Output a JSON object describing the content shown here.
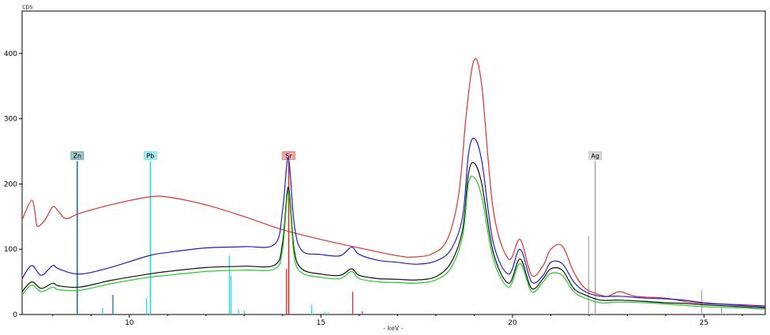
{
  "chart_data": {
    "type": "line",
    "title": "",
    "xlabel": "- keV -",
    "ylabel": "cps",
    "xlim": [
      7.2,
      26.6
    ],
    "ylim": [
      0,
      465
    ],
    "x_ticks": [
      10,
      15,
      20,
      25
    ],
    "y_ticks": [
      0,
      100,
      200,
      300,
      400
    ],
    "grid": false,
    "legend": "none",
    "series": [
      {
        "color": "#e0342b",
        "x": [
          7.2,
          7.45,
          7.55,
          7.6,
          7.8,
          8.0,
          8.15,
          8.35,
          8.7,
          9.5,
          10.5,
          11.0,
          12.0,
          13.0,
          14.0,
          15.0,
          16.0,
          17.0,
          17.4,
          17.9,
          18.3,
          18.6,
          18.8,
          19.0,
          19.2,
          19.5,
          19.9,
          20.2,
          20.5,
          20.8,
          21.0,
          21.3,
          21.6,
          21.9,
          22.3,
          22.5,
          22.8,
          23.2,
          24.0,
          24.5,
          25.0,
          26.0,
          26.6
        ],
        "y": [
          145,
          175,
          150,
          135,
          145,
          165,
          158,
          147,
          155,
          168,
          180,
          180,
          168,
          150,
          130,
          115,
          102,
          90,
          88,
          93,
          115,
          185,
          310,
          390,
          350,
          160,
          85,
          115,
          60,
          75,
          100,
          105,
          65,
          40,
          30,
          28,
          35,
          28,
          25,
          20,
          17,
          15,
          13
        ]
      },
      {
        "color": "#1e1ecc",
        "x": [
          7.2,
          7.45,
          7.7,
          8.0,
          8.15,
          8.7,
          9.5,
          10.5,
          11.0,
          12.0,
          13.0,
          13.8,
          14.0,
          14.15,
          14.3,
          14.5,
          15.0,
          15.5,
          15.8,
          16.0,
          16.5,
          17.0,
          17.5,
          18.0,
          18.4,
          18.7,
          18.85,
          19.0,
          19.2,
          19.5,
          19.9,
          20.2,
          20.5,
          20.8,
          21.0,
          21.3,
          21.6,
          21.9,
          22.3,
          22.8,
          23.5,
          24.0,
          24.5,
          25.0,
          26.0,
          26.6
        ],
        "y": [
          55,
          75,
          60,
          75,
          70,
          62,
          72,
          90,
          95,
          102,
          104,
          108,
          160,
          240,
          140,
          98,
          92,
          90,
          103,
          92,
          83,
          80,
          77,
          82,
          100,
          150,
          245,
          270,
          235,
          110,
          62,
          100,
          50,
          60,
          80,
          78,
          50,
          35,
          28,
          28,
          25,
          24,
          22,
          18,
          14,
          12
        ]
      },
      {
        "color": "#111111",
        "x": [
          7.2,
          7.45,
          7.7,
          8.0,
          8.15,
          8.7,
          9.5,
          10.5,
          11.0,
          12.0,
          13.0,
          13.8,
          14.0,
          14.15,
          14.3,
          14.5,
          15.0,
          15.5,
          15.8,
          16.0,
          16.5,
          17.0,
          17.5,
          18.0,
          18.4,
          18.7,
          18.85,
          19.0,
          19.2,
          19.5,
          19.9,
          20.2,
          20.5,
          20.8,
          21.0,
          21.3,
          21.6,
          21.9,
          22.3,
          22.8,
          23.5,
          24.0,
          24.5,
          25.0,
          26.0,
          26.6
        ],
        "y": [
          35,
          50,
          40,
          48,
          44,
          42,
          52,
          62,
          66,
          72,
          74,
          76,
          110,
          195,
          100,
          70,
          62,
          60,
          70,
          60,
          55,
          54,
          53,
          58,
          80,
          130,
          215,
          232,
          200,
          95,
          48,
          85,
          40,
          55,
          70,
          68,
          40,
          30,
          22,
          22,
          20,
          18,
          17,
          15,
          12,
          10
        ]
      },
      {
        "color": "#22cc22",
        "x": [
          7.2,
          7.45,
          7.7,
          8.0,
          8.15,
          8.7,
          9.5,
          10.5,
          11.0,
          12.0,
          13.0,
          13.8,
          14.0,
          14.15,
          14.3,
          14.5,
          15.0,
          15.5,
          15.8,
          16.0,
          16.5,
          17.0,
          17.5,
          18.0,
          18.4,
          18.7,
          18.85,
          19.0,
          19.2,
          19.5,
          19.9,
          20.2,
          20.5,
          20.8,
          21.0,
          21.3,
          21.6,
          21.9,
          22.3,
          22.8,
          23.5,
          24.0,
          24.5,
          25.0,
          26.0,
          26.6
        ],
        "y": [
          30,
          45,
          35,
          42,
          38,
          37,
          47,
          57,
          60,
          66,
          68,
          70,
          100,
          188,
          90,
          64,
          57,
          55,
          66,
          55,
          50,
          49,
          48,
          53,
          72,
          120,
          200,
          210,
          180,
          85,
          42,
          78,
          35,
          50,
          63,
          60,
          35,
          25,
          18,
          19,
          18,
          16,
          14,
          12,
          10,
          8
        ]
      }
    ],
    "element_markers": [
      {
        "label": "Zn",
        "energy": 8.64,
        "color": "#1a7a8a",
        "height": 235,
        "bg": "#9fc5c9"
      },
      {
        "label": "Pb",
        "energy": 10.55,
        "color": "#22dddd",
        "height": 235,
        "bg": "#a8eded"
      },
      {
        "label": "Sr",
        "energy": 14.16,
        "color": "#e0342b",
        "height": 235,
        "bg": "#f0a8a8"
      },
      {
        "label": "Ag",
        "energy": 22.16,
        "color": "#aaaaaa",
        "height": 235,
        "bg": "#d8d8d8"
      }
    ],
    "stick_lines": [
      {
        "energy": 8.64,
        "value": 230,
        "color": "#1a7a8a"
      },
      {
        "energy": 9.57,
        "value": 30,
        "color": "#1a7a8a"
      },
      {
        "energy": 9.3,
        "value": 10,
        "color": "#22dddd"
      },
      {
        "energy": 10.45,
        "value": 25,
        "color": "#22dddd"
      },
      {
        "energy": 10.55,
        "value": 230,
        "color": "#22dddd"
      },
      {
        "energy": 12.61,
        "value": 90,
        "color": "#22dddd"
      },
      {
        "energy": 12.65,
        "value": 60,
        "color": "#22dddd"
      },
      {
        "energy": 12.85,
        "value": 8,
        "color": "#22dddd"
      },
      {
        "energy": 13.0,
        "value": 6,
        "color": "#22dddd"
      },
      {
        "energy": 14.76,
        "value": 15,
        "color": "#22dddd"
      },
      {
        "energy": 15.1,
        "value": 4,
        "color": "#22dddd"
      },
      {
        "energy": 15.2,
        "value": 3,
        "color": "#22dddd"
      },
      {
        "energy": 14.1,
        "value": 70,
        "color": "#e0342b"
      },
      {
        "energy": 14.16,
        "value": 230,
        "color": "#e0342b"
      },
      {
        "energy": 15.83,
        "value": 35,
        "color": "#e0342b"
      },
      {
        "energy": 16.08,
        "value": 5,
        "color": "#e0342b"
      },
      {
        "energy": 21.99,
        "value": 120,
        "color": "#aaaaaa"
      },
      {
        "energy": 22.16,
        "value": 230,
        "color": "#aaaaaa"
      },
      {
        "energy": 24.94,
        "value": 38,
        "color": "#aaaaaa"
      },
      {
        "energy": 25.46,
        "value": 10,
        "color": "#aaaaaa"
      }
    ]
  }
}
